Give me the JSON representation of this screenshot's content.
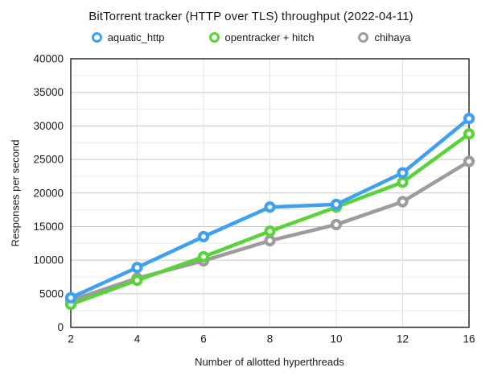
{
  "page": {
    "title": "BitTorrent tracker (HTTP over TLS) throughput (2022-04-11)"
  },
  "chart_data": {
    "type": "line",
    "title": "BitTorrent tracker (HTTP over TLS) throughput (2022-04-11)",
    "categories": [
      "2",
      "4",
      "6",
      "8",
      "10",
      "12",
      "16"
    ],
    "series": [
      {
        "name": "aquatic_http",
        "color": "#3FA0F2",
        "values": [
          4400,
          8900,
          13500,
          17900,
          18300,
          23000,
          31100
        ]
      },
      {
        "name": "opentracker + hitch",
        "color": "#5AD23A",
        "values": [
          3400,
          7000,
          10500,
          14300,
          17900,
          21600,
          28800
        ]
      },
      {
        "name": "chihaya",
        "color": "#9C9C9C",
        "values": [
          4000,
          7300,
          9900,
          12900,
          15300,
          18700,
          24700
        ]
      }
    ],
    "xlabel": "Number of allotted hyperthreads",
    "ylabel": "Responses per second",
    "ylim": [
      0,
      40000
    ],
    "y_major_step": 5000,
    "y_minor_step": 2500,
    "grid": true,
    "legend_position": "top",
    "marker_style": "open-circle"
  },
  "colors": {
    "background": "#FFFFFF",
    "axis": "#2B2B2B",
    "grid_major": "#C6C6C6",
    "grid_minor": "#ECECEC",
    "grid_vertical": "#E3E3E3",
    "text": "#1A1A1A"
  }
}
